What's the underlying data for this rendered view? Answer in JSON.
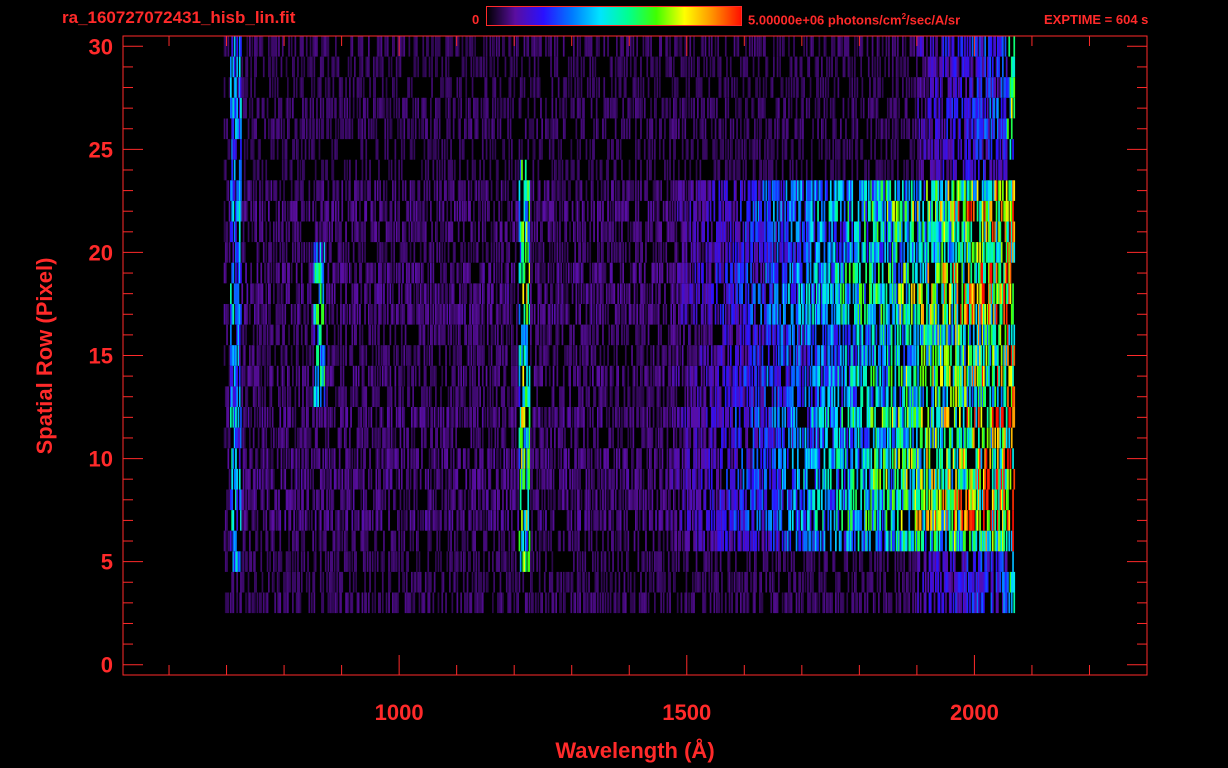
{
  "header": {
    "filename": "ra_160727072431_hisb_lin.fit",
    "colorbar_min": "0",
    "colorbar_max_prefix": "5.00000e+06 photons/cm",
    "colorbar_max_exp": "2",
    "colorbar_max_suffix": "/sec/A/sr",
    "exptime": "EXPTIME = 604 s"
  },
  "colors": {
    "axis": "#ff2a2a",
    "background": "#000000",
    "colormap": [
      "#000000",
      "#5a0ea0",
      "#2a10ff",
      "#0078ff",
      "#00e4ff",
      "#00ff90",
      "#40ff00",
      "#ffff00",
      "#ff9000",
      "#ff1000"
    ]
  },
  "chart_data": {
    "type": "heatmap",
    "xlabel": "Wavelength (Å)",
    "ylabel": "Spatial Row (Pixel)",
    "xlim": [
      520,
      2300
    ],
    "ylim": [
      -0.5,
      30.5
    ],
    "xticks": [
      1000,
      1500,
      2000
    ],
    "yticks": [
      0,
      5,
      10,
      15,
      20,
      25,
      30
    ],
    "colorbar": {
      "min": 0,
      "max": 5000000,
      "units": "photons/cm^2/sec/A/sr"
    },
    "row_band": {
      "slit_rows": [
        6,
        23
      ],
      "dim_rows": [
        3,
        30
      ]
    },
    "wavelength_range": [
      695,
      2070
    ],
    "features": [
      {
        "wavelength": 1216,
        "rows": [
          5,
          24
        ],
        "intensity": 0.55
      },
      {
        "wavelength": 860,
        "rows": [
          13,
          20
        ],
        "intensity": 0.45
      },
      {
        "wavelength": 715,
        "rows": [
          5,
          30
        ],
        "intensity": 0.35
      }
    ],
    "continuum_rise": {
      "start": 1500,
      "peak": 2050,
      "peak_intensity": 0.75
    }
  }
}
